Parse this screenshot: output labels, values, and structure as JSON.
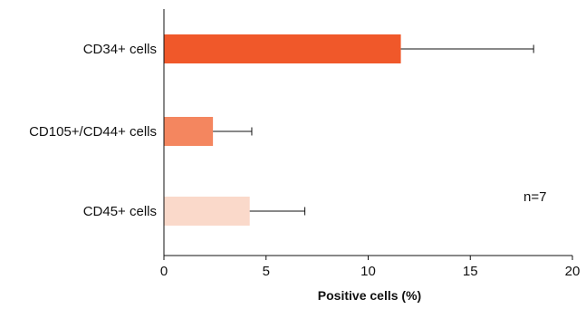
{
  "chart_data": {
    "type": "bar",
    "orientation": "horizontal",
    "categories": [
      "CD34+ cells",
      "CD105+/CD44+ cells",
      "CD45+ cells"
    ],
    "values": [
      11.6,
      2.4,
      4.2
    ],
    "errors": [
      6.5,
      1.9,
      2.7
    ],
    "colors": [
      "#f0582a",
      "#f4865f",
      "#fad9ca"
    ],
    "xlabel": "Positive cells (%)",
    "ylabel": "",
    "xlim": [
      0,
      20
    ],
    "xticks": [
      0,
      5,
      10,
      15,
      20
    ],
    "grid": false,
    "annotation": "n=7"
  }
}
